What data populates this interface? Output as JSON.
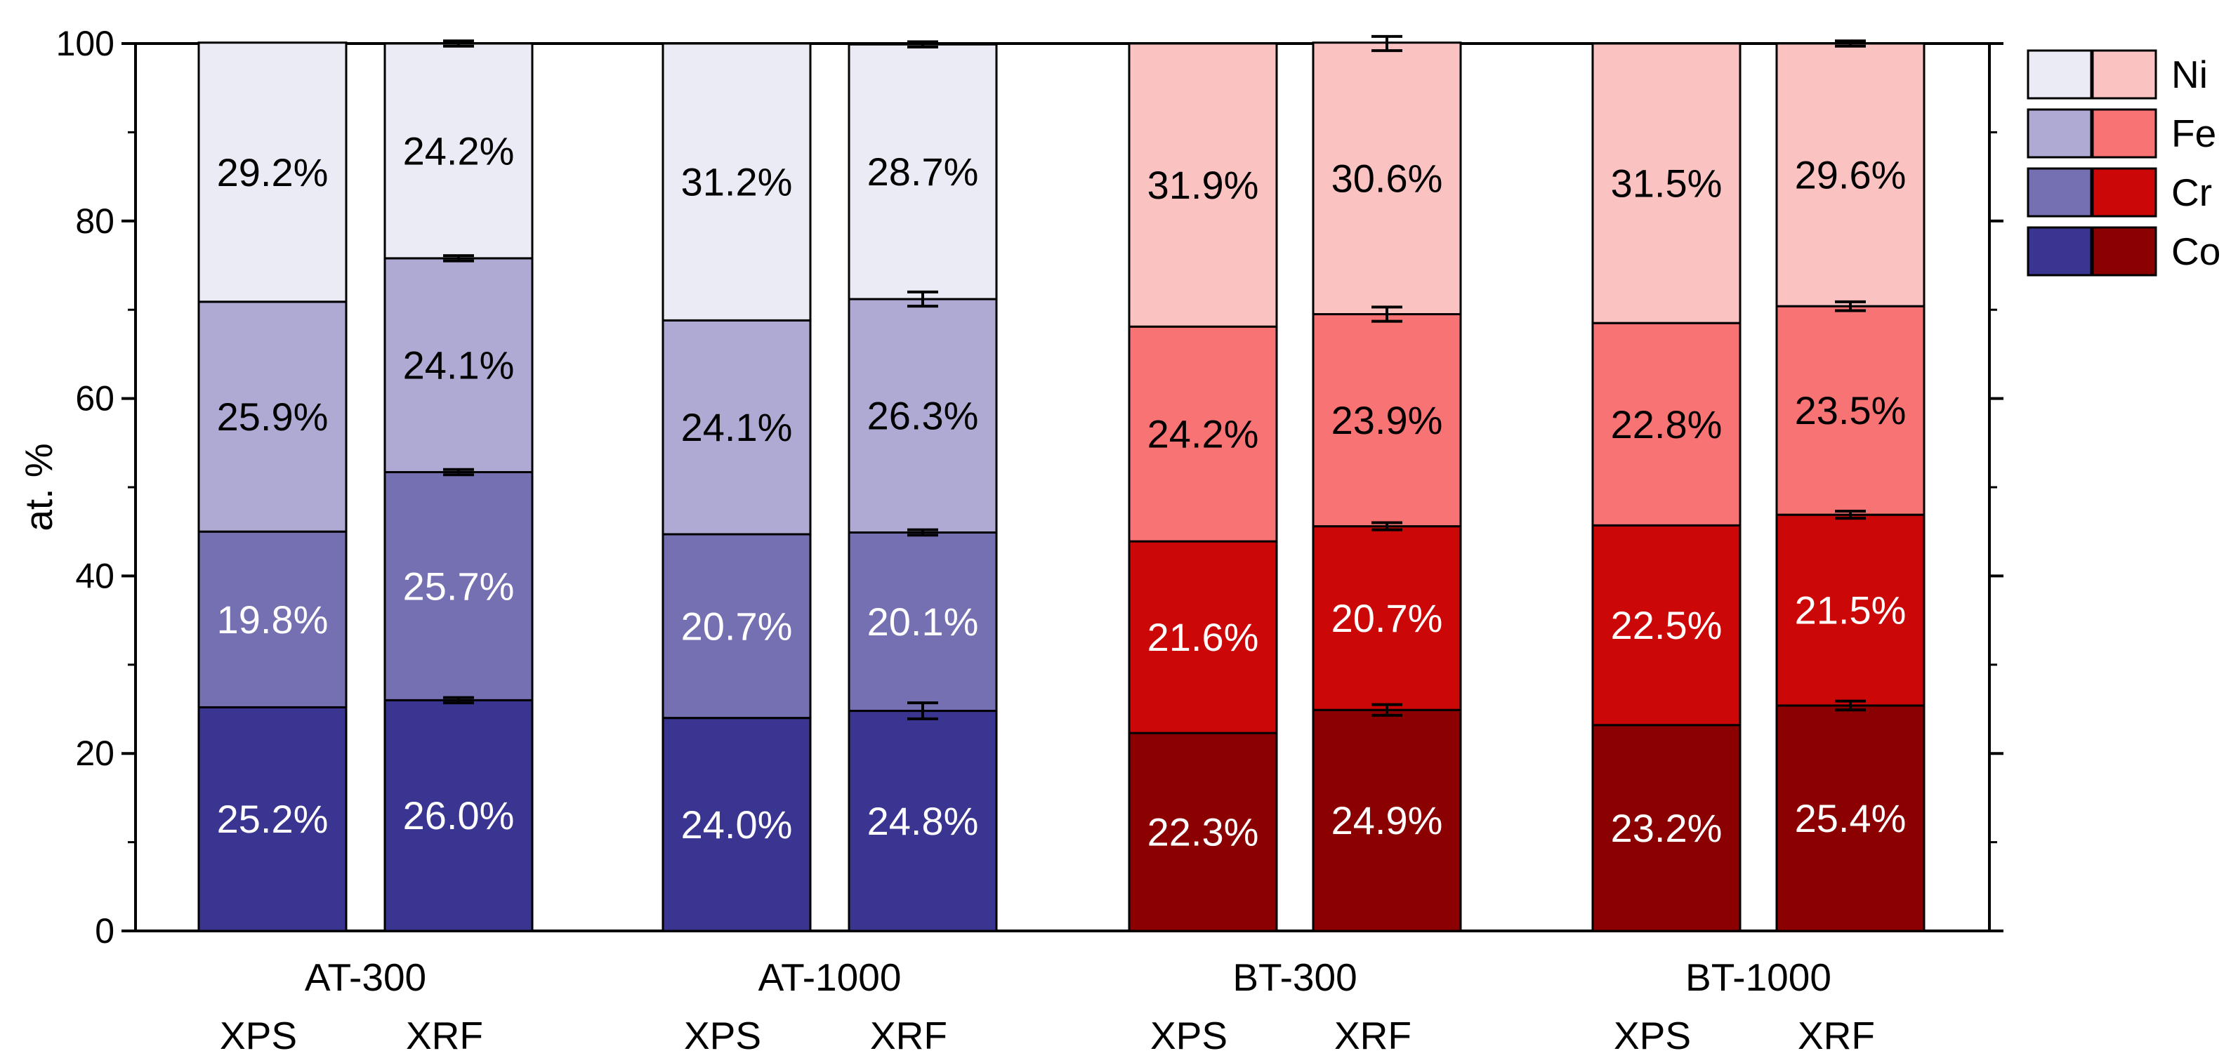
{
  "chart_data": {
    "type": "stacked_bar",
    "ylabel": "at. %",
    "ylim": [
      0,
      100
    ],
    "yticks": [
      0,
      20,
      40,
      60,
      80,
      100
    ],
    "legend_position": "top-right",
    "groups": [
      {
        "label": "AT-300",
        "palette": "blue",
        "bars": [
          {
            "label": "XPS",
            "Co": 25.2,
            "Cr": 19.8,
            "Fe": 25.9,
            "Ni": 29.2,
            "labels": {
              "Co": "25.2%",
              "Cr": "19.8%",
              "Fe": "25.9%",
              "Ni": "29.2%"
            },
            "errors": null
          },
          {
            "label": "XRF",
            "Co": 26.0,
            "Cr": 25.7,
            "Fe": 24.1,
            "Ni": 24.2,
            "labels": {
              "Co": "26.0%",
              "Cr": "25.7%",
              "Fe": "24.1%",
              "Ni": "24.2%"
            },
            "errors": [
              0.3,
              0.3,
              0.3,
              0.3
            ]
          }
        ]
      },
      {
        "label": "AT-1000",
        "palette": "blue",
        "bars": [
          {
            "label": "XPS",
            "Co": 24.0,
            "Cr": 20.7,
            "Fe": 24.1,
            "Ni": 31.2,
            "labels": {
              "Co": "24.0%",
              "Cr": "20.7%",
              "Fe": "24.1%",
              "Ni": "31.2%"
            },
            "errors": null
          },
          {
            "label": "XRF",
            "Co": 24.8,
            "Cr": 20.1,
            "Fe": 26.3,
            "Ni": 28.7,
            "labels": {
              "Co": "24.8%",
              "Cr": "20.1%",
              "Fe": "26.3%",
              "Ni": "28.7%"
            },
            "errors": [
              0.9,
              0.3,
              0.8,
              0.3
            ]
          }
        ]
      },
      {
        "label": "BT-300",
        "palette": "red",
        "bars": [
          {
            "label": "XPS",
            "Co": 22.3,
            "Cr": 21.6,
            "Fe": 24.2,
            "Ni": 31.9,
            "labels": {
              "Co": "22.3%",
              "Cr": "21.6%",
              "Fe": "24.2%",
              "Ni": "31.9%"
            },
            "errors": null
          },
          {
            "label": "XRF",
            "Co": 24.9,
            "Cr": 20.7,
            "Fe": 23.9,
            "Ni": 30.6,
            "labels": {
              "Co": "24.9%",
              "Cr": "20.7%",
              "Fe": "23.9%",
              "Ni": "30.6%"
            },
            "errors": [
              0.6,
              0.4,
              0.8,
              0.8
            ]
          }
        ]
      },
      {
        "label": "BT-1000",
        "palette": "red",
        "bars": [
          {
            "label": "XPS",
            "Co": 23.2,
            "Cr": 22.5,
            "Fe": 22.8,
            "Ni": 31.5,
            "labels": {
              "Co": "23.2%",
              "Cr": "22.5%",
              "Fe": "22.8%",
              "Ni": "31.5%"
            },
            "errors": null
          },
          {
            "label": "XRF",
            "Co": 25.4,
            "Cr": 21.5,
            "Fe": 23.5,
            "Ni": 29.6,
            "labels": {
              "Co": "25.4%",
              "Cr": "21.5%",
              "Fe": "23.5%",
              "Ni": "29.6%"
            },
            "errors": [
              0.5,
              0.4,
              0.5,
              0.3
            ]
          }
        ]
      }
    ],
    "series": [
      "Co",
      "Cr",
      "Fe",
      "Ni"
    ],
    "legend": [
      {
        "name": "Ni"
      },
      {
        "name": "Fe"
      },
      {
        "name": "Cr"
      },
      {
        "name": "Co"
      }
    ],
    "colors": {
      "blue": {
        "Co": "#3a3590",
        "Cr": "#7470b2",
        "Fe": "#aeaad3",
        "Ni": "#ebebf5"
      },
      "red": {
        "Co": "#8b0000",
        "Cr": "#cc0707",
        "Fe": "#f87373",
        "Ni": "#fbc2c2"
      }
    },
    "text_colors": {
      "Co": "#ffffff",
      "Cr": "#ffffff",
      "Fe": "#000000",
      "Ni": "#000000"
    }
  }
}
